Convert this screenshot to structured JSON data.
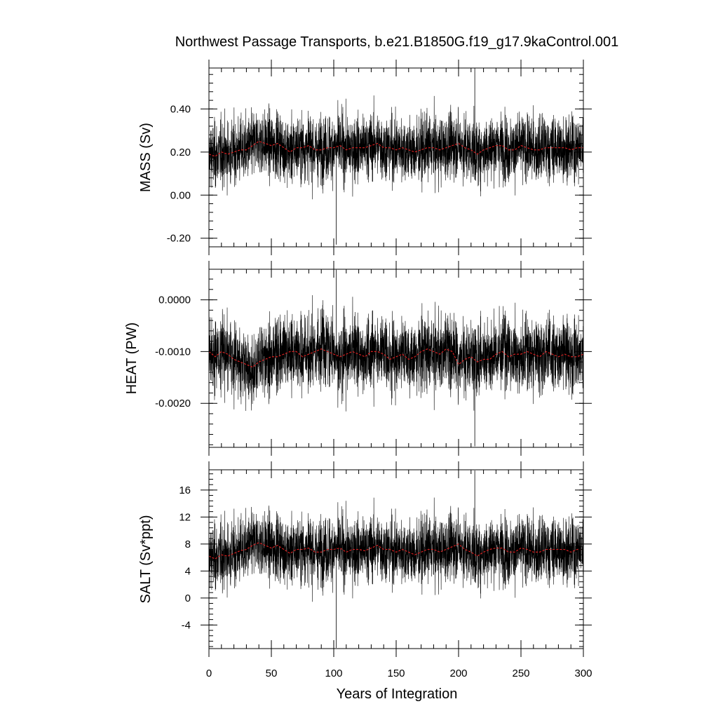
{
  "title": "Northwest Passage Transports, b.e21.B1850G.f19_g17.9kaControl.001",
  "xlabel": "Years of Integration",
  "colors": {
    "raw": "#000000",
    "smooth": "#d62020",
    "frame": "#000000"
  },
  "chart_data": [
    {
      "type": "line",
      "ylabel": "MASS (Sv)",
      "xlim": [
        0,
        300
      ],
      "ylim": [
        -0.24,
        0.59
      ],
      "x_ticks": [
        0,
        50,
        100,
        150,
        200,
        250,
        300
      ],
      "x_tick_labels": [
        "0",
        "50",
        "100",
        "150",
        "200",
        "250",
        "300"
      ],
      "y_ticks": [
        -0.2,
        0.0,
        0.2,
        0.4
      ],
      "y_tick_labels": [
        "-0.20",
        "0.00",
        "0.20",
        "0.40"
      ],
      "series": [
        {
          "kind": "monthly",
          "mean": 0.215,
          "std": 0.075,
          "min": -0.23,
          "max": 0.59
        },
        {
          "kind": "running-mean",
          "values_by_year": [
            0.19,
            0.18,
            0.2,
            0.19,
            0.2,
            0.21,
            0.21,
            0.23,
            0.25,
            0.24,
            0.23,
            0.24,
            0.22,
            0.2,
            0.22,
            0.22,
            0.23,
            0.21,
            0.21,
            0.22,
            0.22,
            0.23,
            0.21,
            0.22,
            0.22,
            0.22,
            0.23,
            0.24,
            0.22,
            0.22,
            0.21,
            0.22,
            0.21,
            0.2,
            0.21,
            0.22,
            0.22,
            0.21,
            0.22,
            0.23,
            0.24,
            0.22,
            0.21,
            0.19,
            0.21,
            0.22,
            0.23,
            0.23,
            0.21,
            0.21,
            0.23,
            0.22,
            0.21,
            0.21,
            0.22,
            0.22,
            0.22,
            0.22,
            0.21,
            0.22,
            0.22
          ]
        }
      ]
    },
    {
      "type": "line",
      "ylabel": "HEAT (PW)",
      "xlim": [
        0,
        300
      ],
      "ylim": [
        -0.00285,
        0.00059
      ],
      "x_ticks": [
        0,
        50,
        100,
        150,
        200,
        250,
        300
      ],
      "x_tick_labels": [
        "",
        "",
        "",
        "",
        "",
        "",
        ""
      ],
      "y_ticks": [
        -0.002,
        -0.001,
        0.0
      ],
      "y_tick_labels": [
        "-0.0020",
        "-0.0010",
        "0.0000"
      ],
      "series": [
        {
          "kind": "monthly",
          "mean": -0.00105,
          "std": 0.00035,
          "min": -0.00283,
          "max": 0.00058
        },
        {
          "kind": "running-mean",
          "values_by_year": [
            -0.001,
            -0.0011,
            -0.001,
            -0.00105,
            -0.00115,
            -0.0012,
            -0.00125,
            -0.0013,
            -0.0012,
            -0.00115,
            -0.0011,
            -0.0011,
            -0.00105,
            -0.001,
            -0.001,
            -0.0011,
            -0.00105,
            -0.001,
            -0.00095,
            -0.001,
            -0.00105,
            -0.0011,
            -0.00105,
            -0.001,
            -0.00105,
            -0.0011,
            -0.001,
            -0.001,
            -0.00105,
            -0.00115,
            -0.0011,
            -0.00105,
            -0.00115,
            -0.0011,
            -0.001,
            -0.00095,
            -0.001,
            -0.00105,
            -0.00095,
            -0.001,
            -0.00125,
            -0.00115,
            -0.0011,
            -0.0012,
            -0.00115,
            -0.00115,
            -0.00105,
            -0.001,
            -0.0011,
            -0.00105,
            -0.00105,
            -0.001,
            -0.00105,
            -0.0011,
            -0.001,
            -0.00105,
            -0.0011,
            -0.00105,
            -0.0011,
            -0.0011,
            -0.00105
          ]
        }
      ]
    },
    {
      "type": "line",
      "ylabel": "SALT (Sv*ppt)",
      "xlim": [
        0,
        300
      ],
      "ylim": [
        -7.5,
        19.0
      ],
      "x_ticks": [
        0,
        50,
        100,
        150,
        200,
        250,
        300
      ],
      "x_tick_labels": [
        "0",
        "50",
        "100",
        "150",
        "200",
        "250",
        "300"
      ],
      "y_ticks": [
        -4,
        0,
        4,
        8,
        12,
        16
      ],
      "y_tick_labels": [
        "-4",
        "0",
        "4",
        "8",
        "12",
        "16"
      ],
      "series": [
        {
          "kind": "monthly",
          "mean": 7.0,
          "std": 2.4,
          "min": -7.4,
          "max": 18.9
        },
        {
          "kind": "running-mean",
          "values_by_year": [
            6.2,
            5.8,
            6.4,
            6.2,
            6.6,
            7.0,
            7.2,
            7.8,
            8.2,
            7.8,
            7.4,
            7.8,
            7.2,
            6.6,
            7.2,
            7.2,
            7.4,
            6.8,
            6.8,
            7.2,
            7.2,
            7.4,
            6.8,
            7.2,
            7.2,
            7.0,
            7.4,
            7.8,
            7.2,
            7.2,
            6.8,
            7.2,
            6.8,
            6.4,
            6.8,
            7.2,
            7.2,
            6.8,
            7.2,
            7.6,
            8.0,
            7.2,
            6.8,
            6.2,
            6.8,
            7.2,
            7.4,
            7.4,
            6.8,
            6.8,
            7.4,
            7.2,
            6.8,
            6.8,
            7.2,
            7.2,
            7.2,
            7.2,
            6.8,
            7.2,
            7.2
          ]
        }
      ]
    }
  ]
}
